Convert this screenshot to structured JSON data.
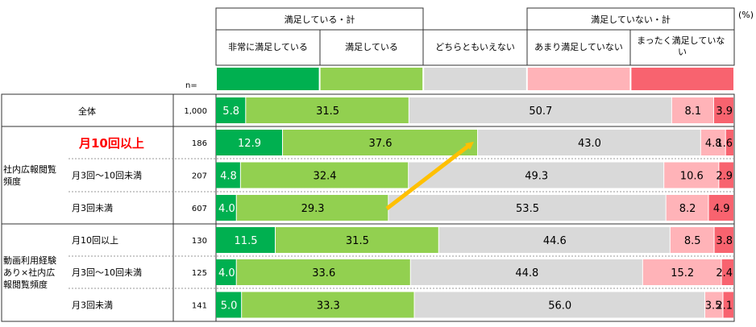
{
  "unit": "(%)",
  "n_label": "n=",
  "groups": [
    {
      "label": "満足している・計"
    },
    {
      "label": "満足していない・計"
    }
  ],
  "legend": [
    {
      "label": "非常に満足している",
      "color": "#00b050"
    },
    {
      "label": "満足している",
      "color": "#92d050"
    },
    {
      "label": "どちらともいえない",
      "color": "#d9d9d9"
    },
    {
      "label": "あまり満足していない",
      "color": "#ffb3b8"
    },
    {
      "label": "まったく満足していない",
      "color": "#f8636f"
    }
  ],
  "sections": [
    {
      "label": "全体"
    },
    {
      "label": "社内広報閲覧頻度"
    },
    {
      "label": "動画利用経験あり×社内広報閲覧頻度"
    }
  ],
  "chart_data": {
    "type": "bar",
    "stacked": "100%",
    "xlim": [
      0,
      100
    ],
    "series_names": [
      "非常に満足している",
      "満足している",
      "どちらともいえない",
      "あまり満足していない",
      "まったく満足していない"
    ],
    "rows": [
      {
        "label": "全体",
        "n": "1,000",
        "values": [
          5.8,
          31.5,
          50.7,
          8.1,
          3.9
        ],
        "value_labels": [
          "5.8",
          "31.5",
          "50.7",
          "8.1",
          "3.9"
        ]
      },
      {
        "label": "月10回以上",
        "highlight": true,
        "n": "186",
        "values": [
          12.9,
          37.6,
          43.0,
          4.8,
          1.6
        ],
        "value_labels": [
          "12.9",
          "37.6",
          "43.0",
          "4.8",
          "1.6"
        ]
      },
      {
        "label": "月3回～10回未満",
        "n": "207",
        "values": [
          4.8,
          32.4,
          49.3,
          10.6,
          2.9
        ],
        "value_labels": [
          "4.8",
          "32.4",
          "49.3",
          "10.6",
          "2.9"
        ]
      },
      {
        "label": "月3回未満",
        "n": "607",
        "values": [
          4.0,
          29.3,
          53.5,
          8.2,
          4.9
        ],
        "value_labels": [
          "4.0",
          "29.3",
          "53.5",
          "8.2",
          "4.9"
        ]
      },
      {
        "label": "月10回以上",
        "n": "130",
        "values": [
          11.5,
          31.5,
          44.6,
          8.5,
          3.8
        ],
        "value_labels": [
          "11.5",
          "31.5",
          "44.6",
          "8.5",
          "3.8"
        ]
      },
      {
        "label": "月3回～10回未満",
        "n": "125",
        "values": [
          4.0,
          33.6,
          44.8,
          15.2,
          2.4
        ],
        "value_labels": [
          "4.0",
          "33.6",
          "44.8",
          "15.2",
          "2.4"
        ]
      },
      {
        "label": "月3回未満",
        "n": "141",
        "values": [
          5.0,
          33.3,
          56.0,
          3.5,
          2.1
        ],
        "value_labels": [
          "5.0",
          "33.3",
          "56.0",
          "3.5",
          "2.1"
        ]
      }
    ],
    "annotation": {
      "type": "arrow",
      "color": "#ffc000",
      "from_row": 3,
      "to_row": 1
    }
  }
}
